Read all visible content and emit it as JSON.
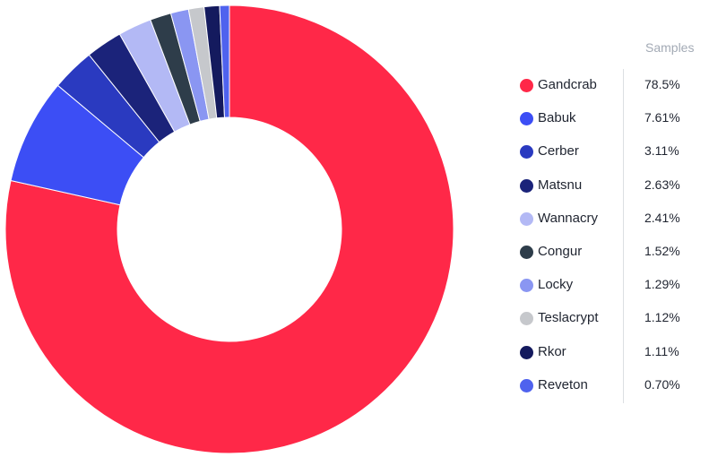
{
  "chart_data": {
    "type": "pie",
    "donut": true,
    "legend_title": "Samples",
    "legend_position": "right",
    "slices": [
      {
        "label": "Gandcrab",
        "value": 78.5,
        "display": "78.5%",
        "color": "#ff2848"
      },
      {
        "label": "Babuk",
        "value": 7.61,
        "display": "7.61%",
        "color": "#3c4ef5"
      },
      {
        "label": "Cerber",
        "value": 3.11,
        "display": "3.11%",
        "color": "#2a3ac0"
      },
      {
        "label": "Matsnu",
        "value": 2.63,
        "display": "2.63%",
        "color": "#1b237a"
      },
      {
        "label": "Wannacry",
        "value": 2.41,
        "display": "2.41%",
        "color": "#b3b9f5"
      },
      {
        "label": "Congur",
        "value": 1.52,
        "display": "1.52%",
        "color": "#2e3d4a"
      },
      {
        "label": "Locky",
        "value": 1.29,
        "display": "1.29%",
        "color": "#8a96f2"
      },
      {
        "label": "Teslacrypt",
        "value": 1.12,
        "display": "1.12%",
        "color": "#c6c8cc"
      },
      {
        "label": "Rkor",
        "value": 1.11,
        "display": "1.11%",
        "color": "#141a5e"
      },
      {
        "label": "Reveton",
        "value": 0.7,
        "display": "0.70%",
        "color": "#4f62ee"
      }
    ]
  }
}
